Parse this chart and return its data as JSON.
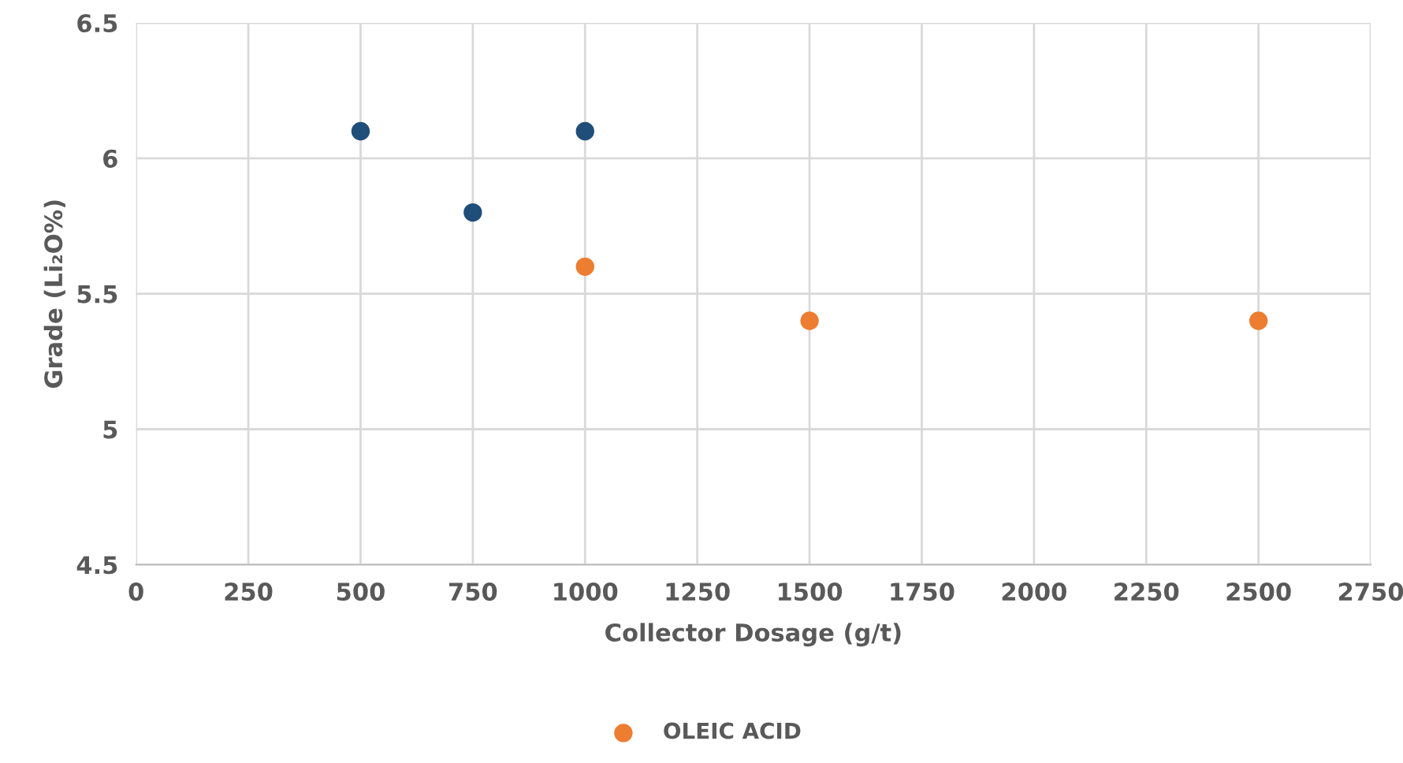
{
  "chart_data": {
    "type": "scatter",
    "xlabel": "Collector Dosage (g/t)",
    "ylabel": "Grade (Li₂O%)",
    "xlim": [
      0,
      2750
    ],
    "xticks": [
      0,
      250,
      500,
      750,
      1000,
      1250,
      1500,
      1750,
      2000,
      2250,
      2500,
      2750
    ],
    "ylim": [
      4.5,
      6.5
    ],
    "yticks": [
      4.5,
      5,
      5.5,
      6,
      6.5
    ],
    "grid": true,
    "legend": "bottom",
    "marker": "circle",
    "series": [
      {
        "name": "OLEIC ACID",
        "color": "#ed7d31",
        "x": [
          1000,
          1500,
          2500
        ],
        "values": [
          5.6,
          5.4,
          5.4
        ]
      },
      {
        "color": "#1f4e79",
        "x": [
          500,
          750,
          1000
        ],
        "values": [
          6.1,
          5.8,
          6.1
        ]
      }
    ]
  }
}
